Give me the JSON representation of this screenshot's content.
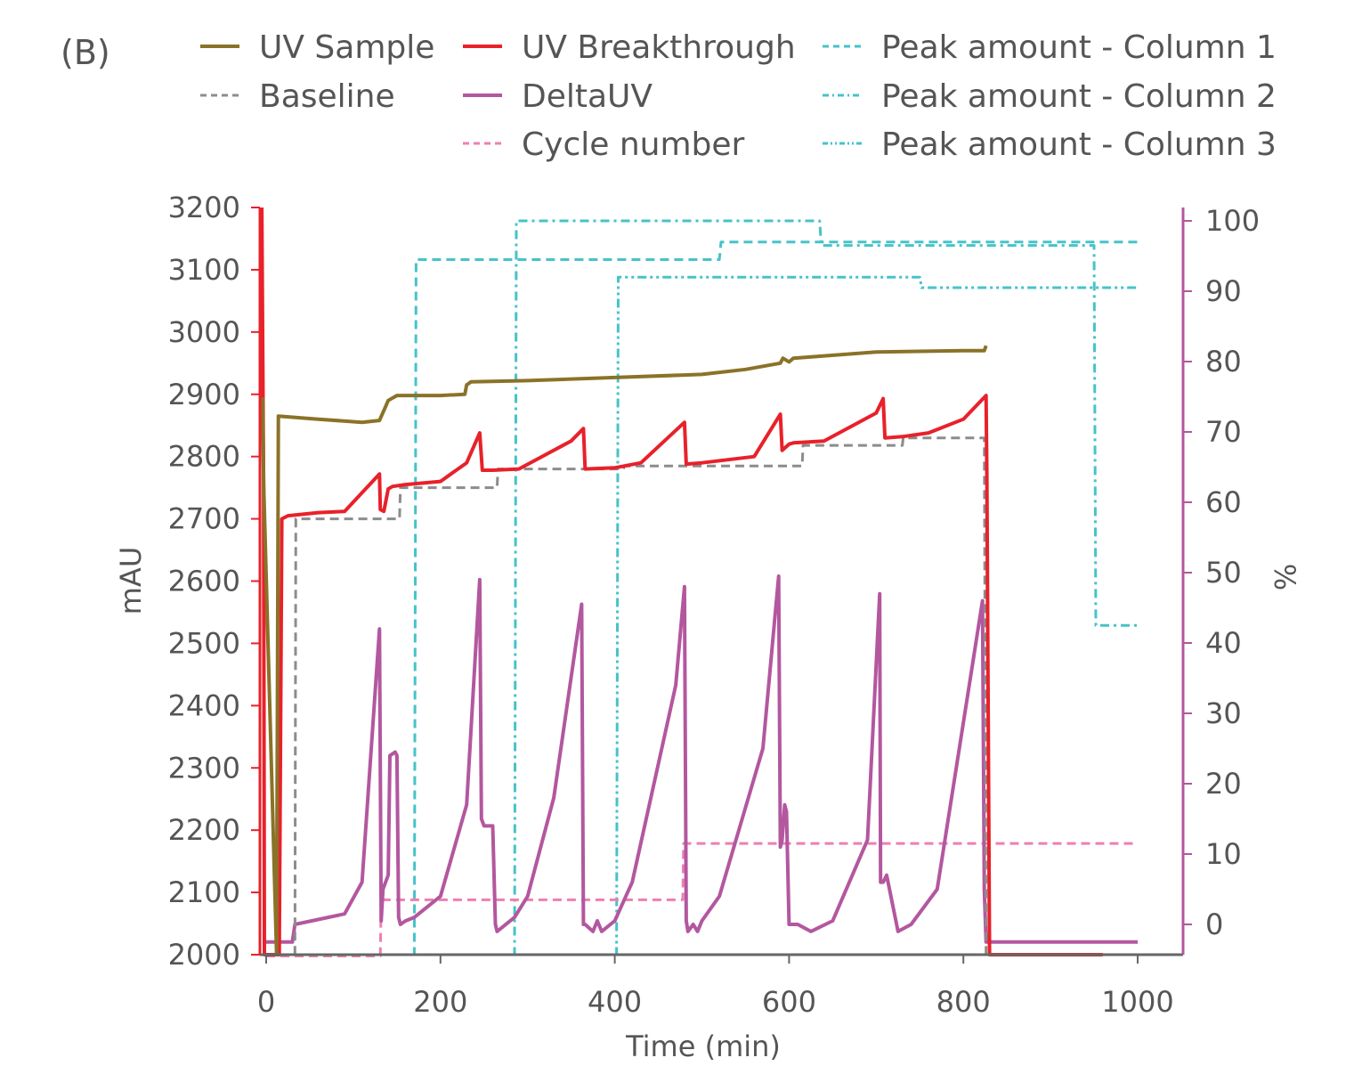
{
  "panel_label": "(B)",
  "chart_data": {
    "type": "line",
    "xlabel": "Time (min)",
    "ylabel_left": "mAU",
    "ylabel_right": "%",
    "xlim": [
      -5,
      1000
    ],
    "ylim_left": [
      2000,
      3200
    ],
    "ylim_right": [
      -4.5,
      103
    ],
    "x_ticks": [
      0,
      200,
      400,
      600,
      800,
      1000
    ],
    "y_ticks_left": [
      2000,
      2100,
      2200,
      2300,
      2400,
      2500,
      2600,
      2700,
      2800,
      2900,
      3000,
      3100,
      3200
    ],
    "y_ticks_right": [
      0,
      10,
      20,
      30,
      40,
      50,
      60,
      70,
      80,
      90,
      100
    ],
    "grid": false,
    "legend_position": "top",
    "legend_columns": 3,
    "colors": {
      "uv_sample": "#8a7228",
      "uv_breakthrough": "#e8212a",
      "baseline": "#8c8c8c",
      "delta_uv": "#b3579f",
      "cycle_number": "#ee7fb2",
      "peak_amount": "#45c3c9",
      "axis": "#666666",
      "right_axis": "#b3579f"
    },
    "series": [
      {
        "name": "UV Sample",
        "axis": "left",
        "style": "solid",
        "color_key": "uv_sample",
        "x": [
          -4,
          -3,
          12,
          14,
          60,
          110,
          130,
          137,
          140,
          150,
          200,
          228,
          230,
          235,
          300,
          400,
          500,
          550,
          590,
          593,
          600,
          605,
          700,
          800,
          824,
          826
        ],
        "y": [
          2895,
          2760,
          2000,
          2865,
          2860,
          2855,
          2858,
          2880,
          2890,
          2898,
          2898,
          2900,
          2915,
          2920,
          2922,
          2927,
          2932,
          2940,
          2950,
          2958,
          2952,
          2958,
          2968,
          2970,
          2970,
          2978
        ]
      },
      {
        "name": "UV Breakthrough",
        "axis": "left",
        "style": "solid",
        "color_key": "uv_breakthrough",
        "x": [
          -5,
          -3,
          -2,
          15,
          18,
          25,
          60,
          90,
          130,
          131,
          135,
          140,
          145,
          160,
          200,
          230,
          245,
          248,
          260,
          290,
          350,
          364,
          366,
          400,
          430,
          480,
          482,
          500,
          560,
          590,
          592,
          600,
          605,
          640,
          700,
          708,
          710,
          730,
          760,
          800,
          826,
          827,
          830,
          960
        ],
        "y": [
          3200,
          2760,
          2000,
          2000,
          2700,
          2705,
          2710,
          2712,
          2772,
          2715,
          2712,
          2748,
          2752,
          2755,
          2760,
          2790,
          2838,
          2778,
          2778,
          2780,
          2825,
          2845,
          2780,
          2782,
          2790,
          2855,
          2788,
          2790,
          2800,
          2868,
          2810,
          2820,
          2822,
          2825,
          2870,
          2893,
          2830,
          2832,
          2838,
          2860,
          2898,
          2770,
          2000,
          2000
        ]
      },
      {
        "name": "Baseline",
        "axis": "left",
        "style": "dashed",
        "color_key": "baseline",
        "x": [
          0,
          33,
          34,
          153,
          154,
          265,
          266,
          410,
          411,
          615,
          616,
          730,
          731,
          823,
          824,
          826
        ],
        "y": [
          2000,
          2000,
          2700,
          2700,
          2750,
          2750,
          2780,
          2780,
          2785,
          2785,
          2818,
          2818,
          2830,
          2830,
          2830,
          2000
        ]
      },
      {
        "name": "DeltaUV",
        "axis": "right",
        "style": "solid",
        "color_key": "delta_uv",
        "x": [
          0,
          30,
          33,
          90,
          110,
          130,
          132,
          134,
          140,
          142,
          148,
          150,
          152,
          154,
          160,
          170,
          200,
          230,
          245,
          247,
          250,
          260,
          263,
          265,
          285,
          300,
          330,
          362,
          364,
          366,
          375,
          380,
          385,
          400,
          420,
          470,
          480,
          482,
          484,
          490,
          495,
          500,
          520,
          570,
          588,
          590,
          592,
          595,
          597,
          600,
          610,
          625,
          650,
          690,
          704,
          705,
          708,
          712,
          725,
          740,
          770,
          822,
          824,
          826,
          1000
        ],
        "y": [
          -2.5,
          -2.5,
          0,
          1.5,
          6,
          42,
          0.5,
          5,
          7,
          24,
          24.5,
          24,
          1,
          0,
          0.5,
          1,
          4,
          17,
          49,
          15,
          14,
          14,
          0,
          -1,
          1,
          4,
          18,
          45.5,
          0,
          0,
          -1,
          0.5,
          -1,
          0.5,
          6,
          34,
          48,
          0.5,
          -1,
          0,
          -1,
          0.5,
          4,
          25,
          49.5,
          11,
          12,
          17,
          16,
          0,
          0,
          -1,
          0.5,
          12,
          47,
          6,
          6,
          7,
          -1,
          0,
          5,
          46,
          5,
          -2.5,
          -2.5
        ]
      },
      {
        "name": "Cycle number",
        "axis": "right",
        "style": "dashed",
        "color_key": "cycle_number",
        "x": [
          0,
          131,
          132,
          478,
          479,
          1000
        ],
        "y": [
          -4.5,
          -4.5,
          3.5,
          3.5,
          11.5,
          11.5
        ]
      },
      {
        "name": "Peak amount - Column 1",
        "axis": "right",
        "style": "dash",
        "color_key": "peak_amount",
        "x": [
          170,
          172,
          520,
          522,
          1000
        ],
        "y": [
          -4.5,
          94.5,
          94.5,
          97,
          97
        ]
      },
      {
        "name": "Peak amount - Column 2",
        "axis": "right",
        "style": "dashdot",
        "color_key": "peak_amount",
        "x": [
          285,
          287,
          635,
          637,
          950,
          952,
          1000
        ],
        "y": [
          -4.5,
          100,
          100,
          96.5,
          96.5,
          42.5,
          42.5
        ]
      },
      {
        "name": "Peak amount - Column 3",
        "axis": "right",
        "style": "dashdotdot",
        "color_key": "peak_amount",
        "x": [
          402,
          404,
          750,
          752,
          1000
        ],
        "y": [
          -4.5,
          92,
          92,
          90.5,
          90.5
        ]
      }
    ]
  }
}
